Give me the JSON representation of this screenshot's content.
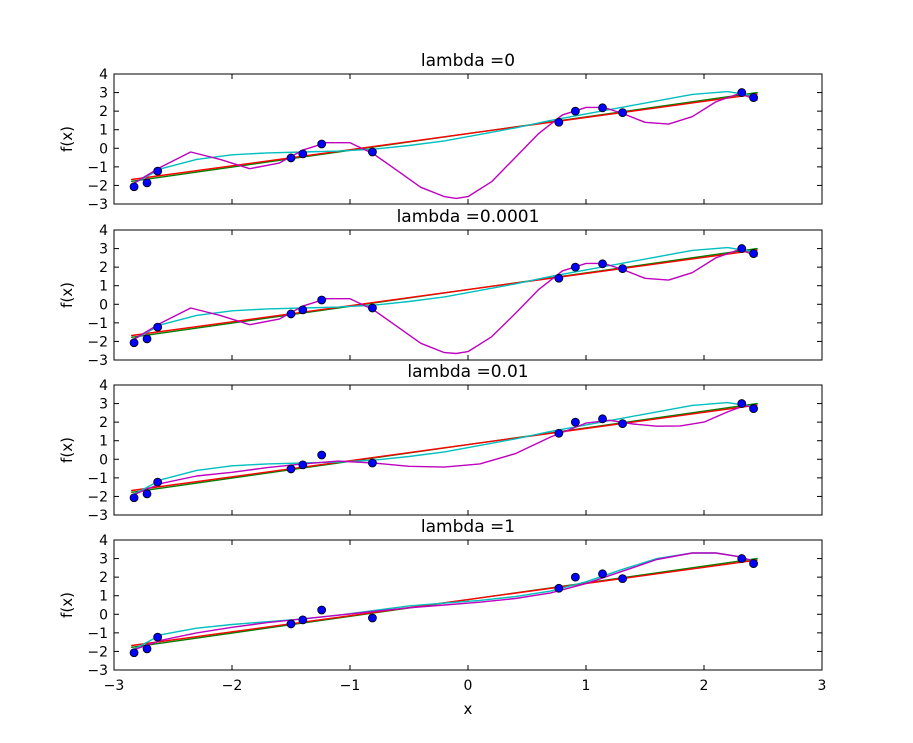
{
  "chart_data": {
    "type": "scatter",
    "xlabel": "x",
    "ylabel": "f(x)",
    "xlim": [
      -3,
      3
    ],
    "xticks": [
      -3,
      -2,
      -1,
      0,
      1,
      2,
      3
    ],
    "xtick_labels": [
      "−3",
      "−2",
      "−1",
      "0",
      "1",
      "2",
      "3"
    ],
    "ylim": [
      -3,
      4
    ],
    "yticks": [
      -3,
      -2,
      -1,
      0,
      1,
      2,
      3,
      4
    ],
    "ytick_labels": [
      "−3",
      "−2",
      "−1",
      "0",
      "1",
      "2",
      "3",
      "4"
    ],
    "grid": false,
    "colors": {
      "points": "#0000ff",
      "point_edge": "#000000",
      "green": "#008000",
      "red": "#ff0000",
      "cyan": "#00bfbf",
      "magenta": "#bf00bf"
    },
    "panels": [
      {
        "title": "lambda =0",
        "points": {
          "x": [
            -2.83,
            -2.72,
            -2.63,
            -1.5,
            -1.4,
            -1.24,
            -0.81,
            0.77,
            0.91,
            1.14,
            1.31,
            2.32,
            2.42
          ],
          "y": [
            -2.07,
            -1.86,
            -1.23,
            -0.52,
            -0.3,
            0.23,
            -0.2,
            1.4,
            2.0,
            2.18,
            1.92,
            3.0,
            2.73
          ]
        },
        "series": [
          {
            "color": "green",
            "x": [
              -2.85,
              2.45
            ],
            "y": [
              -1.78,
              3.0
            ]
          },
          {
            "color": "red",
            "x": [
              -2.85,
              2.45
            ],
            "y": [
              -1.68,
              2.92
            ]
          },
          {
            "color": "cyan",
            "x": [
              -2.85,
              -2.6,
              -2.3,
              -2.0,
              -1.7,
              -1.4,
              -1.1,
              -0.8,
              -0.5,
              -0.2,
              0.1,
              0.4,
              0.7,
              1.0,
              1.3,
              1.6,
              1.9,
              2.2,
              2.45
            ],
            "y": [
              -1.95,
              -1.1,
              -0.6,
              -0.35,
              -0.25,
              -0.2,
              -0.15,
              -0.05,
              0.15,
              0.4,
              0.75,
              1.1,
              1.5,
              1.85,
              2.2,
              2.55,
              2.9,
              3.05,
              2.8
            ]
          },
          {
            "color": "magenta",
            "x": [
              -2.85,
              -2.6,
              -2.35,
              -2.1,
              -1.85,
              -1.6,
              -1.4,
              -1.2,
              -1.0,
              -0.8,
              -0.6,
              -0.4,
              -0.2,
              -0.1,
              0.0,
              0.2,
              0.4,
              0.6,
              0.8,
              1.0,
              1.15,
              1.3,
              1.5,
              1.7,
              1.9,
              2.1,
              2.3,
              2.45
            ],
            "y": [
              -1.95,
              -1.0,
              -0.2,
              -0.6,
              -1.1,
              -0.8,
              -0.1,
              0.3,
              0.3,
              -0.3,
              -1.2,
              -2.1,
              -2.6,
              -2.7,
              -2.6,
              -1.8,
              -0.5,
              0.8,
              1.8,
              2.2,
              2.2,
              1.9,
              1.4,
              1.3,
              1.7,
              2.5,
              2.95,
              2.6
            ]
          }
        ]
      },
      {
        "title": "lambda =0.0001",
        "points": {
          "x": [
            -2.83,
            -2.72,
            -2.63,
            -1.5,
            -1.4,
            -1.24,
            -0.81,
            0.77,
            0.91,
            1.14,
            1.31,
            2.32,
            2.42
          ],
          "y": [
            -2.07,
            -1.86,
            -1.23,
            -0.52,
            -0.3,
            0.23,
            -0.2,
            1.4,
            2.0,
            2.18,
            1.92,
            3.0,
            2.73
          ]
        },
        "series": [
          {
            "color": "green",
            "x": [
              -2.85,
              2.45
            ],
            "y": [
              -1.78,
              3.0
            ]
          },
          {
            "color": "red",
            "x": [
              -2.85,
              2.45
            ],
            "y": [
              -1.68,
              2.92
            ]
          },
          {
            "color": "cyan",
            "x": [
              -2.85,
              -2.6,
              -2.3,
              -2.0,
              -1.7,
              -1.4,
              -1.1,
              -0.8,
              -0.5,
              -0.2,
              0.1,
              0.4,
              0.7,
              1.0,
              1.3,
              1.6,
              1.9,
              2.2,
              2.45
            ],
            "y": [
              -1.95,
              -1.1,
              -0.6,
              -0.35,
              -0.25,
              -0.2,
              -0.15,
              -0.05,
              0.15,
              0.4,
              0.75,
              1.1,
              1.5,
              1.85,
              2.2,
              2.55,
              2.9,
              3.05,
              2.8
            ]
          },
          {
            "color": "magenta",
            "x": [
              -2.85,
              -2.6,
              -2.35,
              -2.1,
              -1.85,
              -1.6,
              -1.4,
              -1.2,
              -1.0,
              -0.8,
              -0.6,
              -0.4,
              -0.2,
              -0.1,
              0.0,
              0.2,
              0.4,
              0.6,
              0.8,
              1.0,
              1.15,
              1.3,
              1.5,
              1.7,
              1.9,
              2.1,
              2.3,
              2.45
            ],
            "y": [
              -1.95,
              -1.0,
              -0.2,
              -0.6,
              -1.1,
              -0.8,
              -0.1,
              0.3,
              0.3,
              -0.3,
              -1.2,
              -2.1,
              -2.6,
              -2.65,
              -2.55,
              -1.75,
              -0.5,
              0.8,
              1.8,
              2.2,
              2.2,
              1.9,
              1.4,
              1.3,
              1.7,
              2.5,
              2.95,
              2.6
            ]
          }
        ]
      },
      {
        "title": "lambda =0.01",
        "points": {
          "x": [
            -2.83,
            -2.72,
            -2.63,
            -1.5,
            -1.4,
            -1.24,
            -0.81,
            0.77,
            0.91,
            1.14,
            1.31,
            2.32,
            2.42
          ],
          "y": [
            -2.07,
            -1.86,
            -1.23,
            -0.52,
            -0.3,
            0.23,
            -0.2,
            1.4,
            2.0,
            2.18,
            1.92,
            3.0,
            2.73
          ]
        },
        "series": [
          {
            "color": "green",
            "x": [
              -2.85,
              2.45
            ],
            "y": [
              -1.78,
              3.0
            ]
          },
          {
            "color": "red",
            "x": [
              -2.85,
              2.45
            ],
            "y": [
              -1.68,
              2.92
            ]
          },
          {
            "color": "cyan",
            "x": [
              -2.85,
              -2.6,
              -2.3,
              -2.0,
              -1.7,
              -1.4,
              -1.1,
              -0.8,
              -0.5,
              -0.2,
              0.1,
              0.4,
              0.7,
              1.0,
              1.3,
              1.6,
              1.9,
              2.2,
              2.45
            ],
            "y": [
              -1.95,
              -1.1,
              -0.6,
              -0.35,
              -0.25,
              -0.2,
              -0.15,
              -0.05,
              0.15,
              0.4,
              0.75,
              1.1,
              1.5,
              1.85,
              2.2,
              2.55,
              2.9,
              3.05,
              2.8
            ]
          },
          {
            "color": "magenta",
            "x": [
              -2.85,
              -2.6,
              -2.3,
              -2.0,
              -1.7,
              -1.4,
              -1.1,
              -0.8,
              -0.5,
              -0.2,
              0.1,
              0.4,
              0.7,
              1.0,
              1.2,
              1.4,
              1.6,
              1.8,
              2.0,
              2.2,
              2.35,
              2.45
            ],
            "y": [
              -1.95,
              -1.3,
              -0.9,
              -0.7,
              -0.45,
              -0.25,
              -0.1,
              -0.2,
              -0.38,
              -0.42,
              -0.25,
              0.3,
              1.2,
              1.95,
              2.1,
              1.9,
              1.78,
              1.8,
              2.0,
              2.55,
              2.9,
              2.7
            ]
          }
        ]
      },
      {
        "title": "lambda =1",
        "points": {
          "x": [
            -2.83,
            -2.72,
            -2.63,
            -1.5,
            -1.4,
            -1.24,
            -0.81,
            0.77,
            0.91,
            1.14,
            1.31,
            2.32,
            2.42
          ],
          "y": [
            -2.07,
            -1.86,
            -1.23,
            -0.52,
            -0.3,
            0.23,
            -0.2,
            1.4,
            2.0,
            2.18,
            1.92,
            3.0,
            2.73
          ]
        },
        "series": [
          {
            "color": "green",
            "x": [
              -2.85,
              2.45
            ],
            "y": [
              -1.78,
              3.0
            ]
          },
          {
            "color": "red",
            "x": [
              -2.85,
              2.45
            ],
            "y": [
              -1.68,
              2.92
            ]
          },
          {
            "color": "cyan",
            "x": [
              -2.85,
              -2.6,
              -2.3,
              -2.0,
              -1.7,
              -1.4,
              -1.1,
              -0.8,
              -0.5,
              -0.2,
              0.1,
              0.4,
              0.7,
              1.0,
              1.3,
              1.6,
              1.9,
              2.1,
              2.3,
              2.45
            ],
            "y": [
              -1.95,
              -1.1,
              -0.75,
              -0.55,
              -0.4,
              -0.25,
              -0.05,
              0.2,
              0.45,
              0.6,
              0.75,
              0.95,
              1.25,
              1.75,
              2.4,
              3.0,
              3.3,
              3.3,
              3.1,
              2.8
            ]
          },
          {
            "color": "magenta",
            "x": [
              -2.85,
              -2.6,
              -2.3,
              -2.0,
              -1.7,
              -1.4,
              -1.1,
              -0.8,
              -0.5,
              -0.2,
              0.1,
              0.4,
              0.7,
              1.0,
              1.3,
              1.6,
              1.9,
              2.1,
              2.3,
              2.45
            ],
            "y": [
              -1.95,
              -1.4,
              -1.0,
              -0.7,
              -0.45,
              -0.25,
              -0.05,
              0.15,
              0.35,
              0.5,
              0.65,
              0.85,
              1.15,
              1.65,
              2.3,
              2.95,
              3.3,
              3.3,
              3.1,
              2.8
            ]
          }
        ]
      }
    ]
  }
}
